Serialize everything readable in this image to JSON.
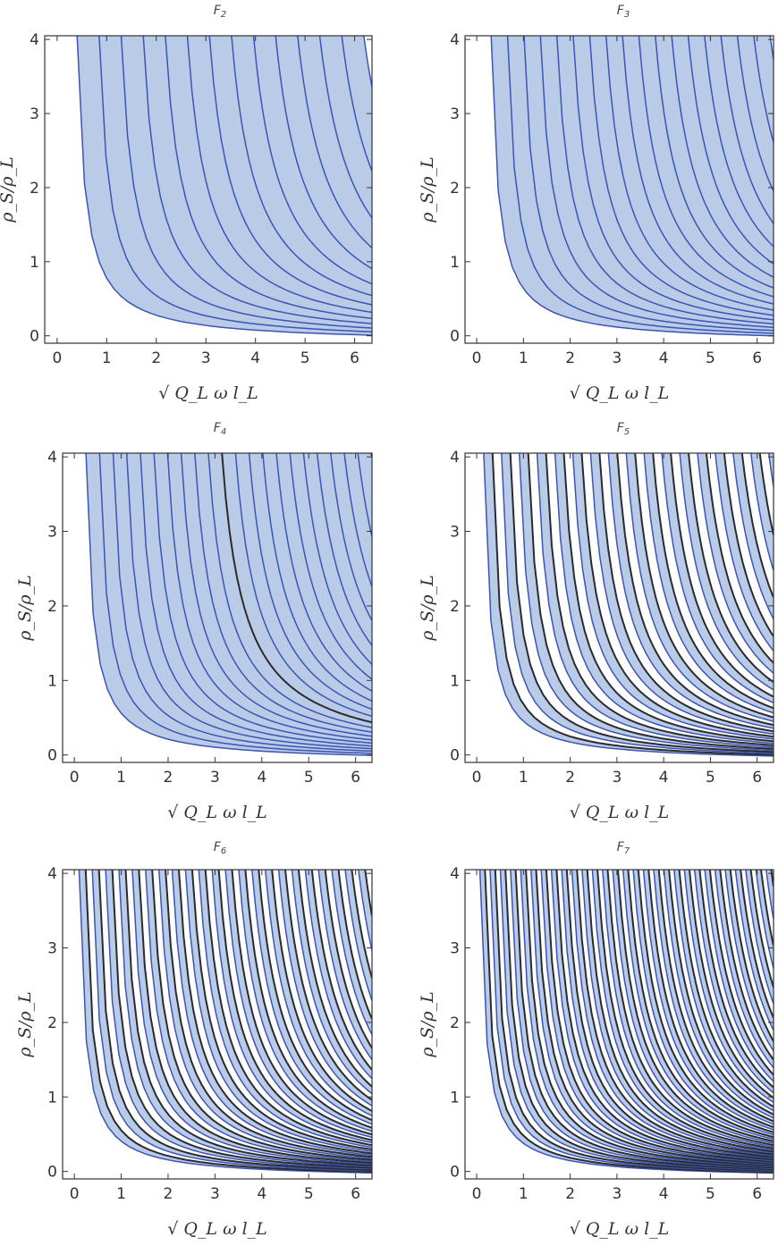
{
  "chart_data": [
    {
      "type": "area",
      "title": "F",
      "title_sub": "2",
      "xlabel": "√ Q_L ω l_L",
      "ylabel": "ρ_S/ρ_L",
      "xlim": [
        -0.25,
        6.35
      ],
      "ylim": [
        -0.1,
        4.05
      ],
      "x_ticks": [
        "0",
        "1",
        "2",
        "3",
        "4",
        "5",
        "6"
      ],
      "y_ticks": [
        "0",
        "1",
        "2",
        "3",
        "4"
      ],
      "curve_count": 14,
      "shaded_regions": 8,
      "dark_curves": 0
    },
    {
      "type": "area",
      "title": "F",
      "title_sub": "3",
      "xlabel": "√ Q_L ω l_L",
      "ylabel": "ρ_S/ρ_L",
      "xlim": [
        -0.25,
        6.35
      ],
      "ylim": [
        -0.1,
        4.05
      ],
      "x_ticks": [
        "0",
        "1",
        "2",
        "3",
        "4",
        "5",
        "6"
      ],
      "y_ticks": [
        "0",
        "1",
        "2",
        "3",
        "4"
      ],
      "curve_count": 18,
      "shaded_regions": 10,
      "dark_curves": 0
    },
    {
      "type": "area",
      "title": "F",
      "title_sub": "4",
      "xlabel": "√ Q_L ω l_L",
      "ylabel": "ρ_S/ρ_L",
      "xlim": [
        -0.25,
        6.35
      ],
      "ylim": [
        -0.1,
        4.05
      ],
      "x_ticks": [
        "0",
        "1",
        "2",
        "3",
        "4",
        "5",
        "6"
      ],
      "y_ticks": [
        "0",
        "1",
        "2",
        "3",
        "4"
      ],
      "curve_count": 22,
      "shaded_regions": 12,
      "dark_curves": 2
    },
    {
      "type": "area",
      "title": "F",
      "title_sub": "5",
      "xlabel": "√ Q_L ω l_L",
      "ylabel": "ρ_S/ρ_L",
      "xlim": [
        -0.25,
        6.35
      ],
      "ylim": [
        -0.1,
        4.05
      ],
      "x_ticks": [
        "0",
        "1",
        "2",
        "3",
        "4",
        "5",
        "6"
      ],
      "y_ticks": [
        "0",
        "1",
        "2",
        "3",
        "4"
      ],
      "curve_count": 34,
      "shaded_regions": 16,
      "dark_curves": 14
    },
    {
      "type": "area",
      "title": "F",
      "title_sub": "6",
      "xlabel": "√ Q_L ω l_L",
      "ylabel": "ρ_S/ρ_L",
      "xlim": [
        -0.25,
        6.35
      ],
      "ylim": [
        -0.1,
        4.05
      ],
      "x_ticks": [
        "0",
        "1",
        "2",
        "3",
        "4",
        "5",
        "6"
      ],
      "y_ticks": [
        "0",
        "1",
        "2",
        "3",
        "4"
      ],
      "curve_count": 46,
      "shaded_regions": 20,
      "dark_curves": 24
    },
    {
      "type": "area",
      "title": "F",
      "title_sub": "7",
      "xlabel": "√ Q_L ω l_L",
      "ylabel": "ρ_S/ρ_L",
      "xlim": [
        -0.25,
        6.35
      ],
      "ylim": [
        -0.1,
        4.05
      ],
      "x_ticks": [
        "0",
        "1",
        "2",
        "3",
        "4",
        "5",
        "6"
      ],
      "y_ticks": [
        "0",
        "1",
        "2",
        "3",
        "4"
      ],
      "curve_count": 60,
      "shaded_regions": 26,
      "dark_curves": 34
    }
  ],
  "colors": {
    "fill": "#aec2e4",
    "curve": "#3a55b4",
    "dark_curve": "#2b2b2b",
    "frame": "#333333"
  }
}
